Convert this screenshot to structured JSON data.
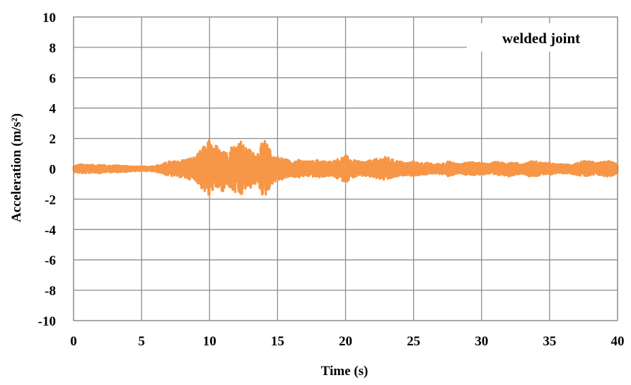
{
  "chart_data": {
    "type": "line",
    "title": "",
    "xlabel": "Time (s)",
    "ylabel": "Acceleration (m/s²)",
    "annotation": "welded joint",
    "xlim": [
      0,
      40
    ],
    "ylim": [
      -10,
      10
    ],
    "x_ticks": [
      0,
      5,
      10,
      15,
      20,
      25,
      30,
      35,
      40
    ],
    "y_ticks": [
      10,
      8,
      6,
      4,
      2,
      0,
      -2,
      -4,
      -6,
      -8,
      -10
    ],
    "grid": true,
    "series_color": "#F79646",
    "series": [
      {
        "x": [
          0,
          0.5,
          1,
          1.5,
          2,
          2.5,
          3,
          3.5,
          4,
          4.5,
          5,
          5.5,
          6,
          6.5,
          7,
          7.5,
          8,
          8.5,
          9,
          9.3,
          9.6,
          9.8,
          10,
          10.2,
          10.5,
          10.7,
          11,
          11.3,
          11.6,
          12,
          12.3,
          12.6,
          13,
          13.3,
          13.6,
          14,
          14.3,
          14.6,
          15,
          15.5,
          16,
          16.5,
          17,
          17.5,
          18,
          18.5,
          19,
          19.5,
          20,
          20.5,
          21,
          21.5,
          22,
          22.5,
          23,
          23.5,
          24,
          24.5,
          25,
          25.5,
          26,
          26.5,
          27,
          27.5,
          28,
          28.5,
          29,
          29.5,
          30,
          30.5,
          31,
          31.5,
          32,
          32.5,
          33,
          33.5,
          34,
          34.5,
          35,
          35.5,
          36,
          36.5,
          37,
          37.5,
          38,
          38.5,
          39,
          39.5,
          40
        ],
        "y": [
          0.2,
          0.3,
          0.3,
          0.25,
          0.3,
          0.2,
          0.25,
          0.2,
          0.2,
          0.15,
          0.15,
          0.15,
          0.2,
          0.3,
          0.5,
          0.5,
          0.6,
          0.7,
          0.8,
          1.2,
          1.5,
          1.7,
          2.0,
          1.4,
          1.6,
          1.2,
          1.8,
          1.0,
          1.5,
          1.7,
          1.9,
          1.4,
          1.3,
          1.0,
          1.2,
          2.0,
          1.5,
          1.0,
          0.8,
          0.7,
          0.5,
          0.6,
          0.5,
          0.5,
          0.6,
          0.5,
          0.5,
          0.7,
          0.9,
          0.6,
          0.5,
          0.5,
          0.6,
          0.7,
          0.8,
          0.6,
          0.5,
          0.4,
          0.5,
          0.4,
          0.4,
          0.3,
          0.35,
          0.5,
          0.4,
          0.3,
          0.5,
          0.4,
          0.4,
          0.35,
          0.5,
          0.4,
          0.5,
          0.4,
          0.3,
          0.5,
          0.5,
          0.4,
          0.4,
          0.3,
          0.3,
          0.3,
          0.4,
          0.5,
          0.5,
          0.4,
          0.5,
          0.5,
          0.3
        ]
      }
    ]
  }
}
